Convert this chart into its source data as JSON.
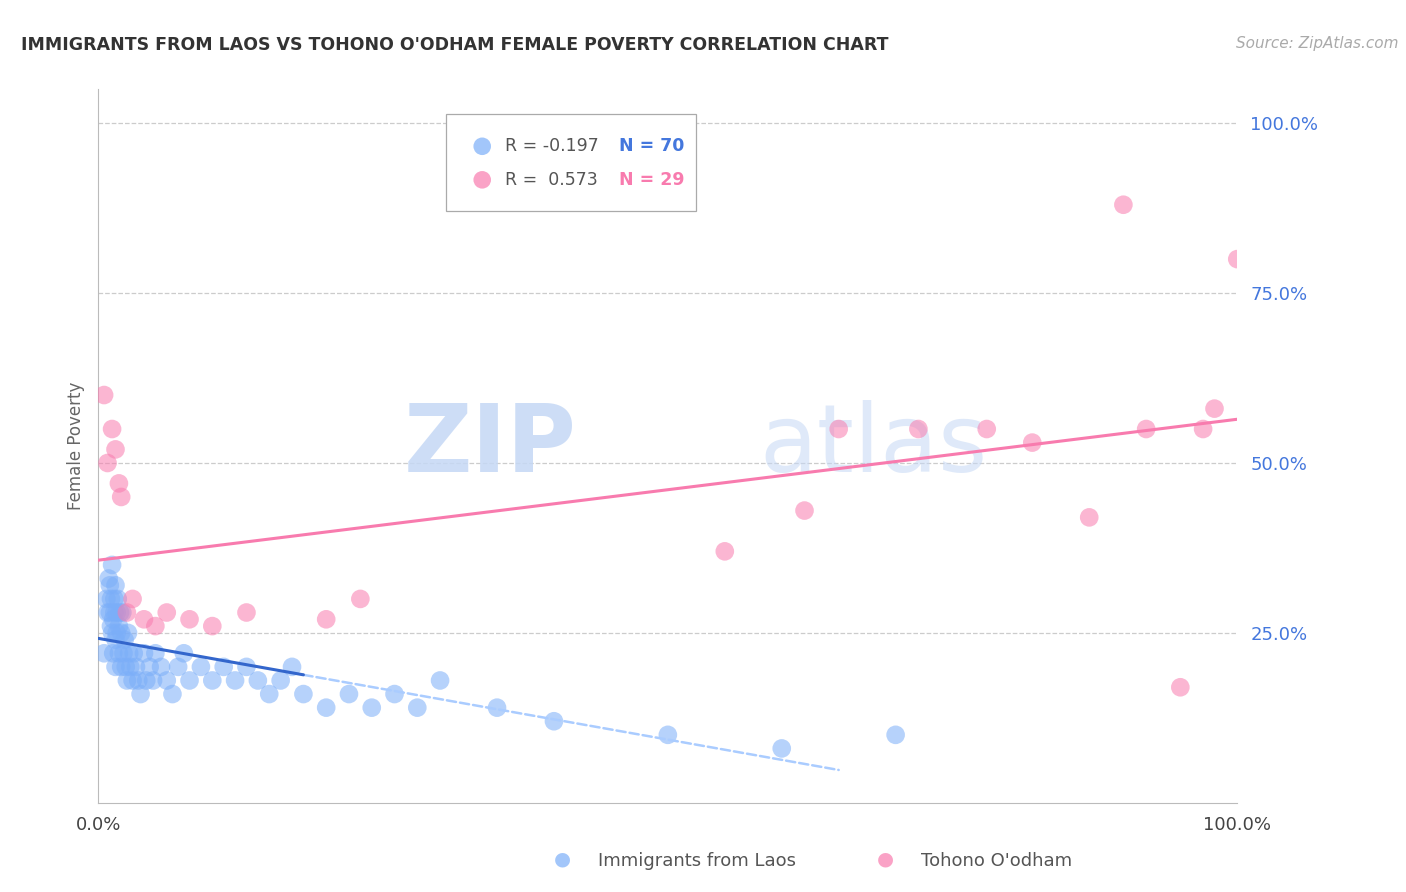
{
  "title": "IMMIGRANTS FROM LAOS VS TOHONO O'ODHAM FEMALE POVERTY CORRELATION CHART",
  "source": "Source: ZipAtlas.com",
  "ylabel": "Female Poverty",
  "ytick_labels": [
    "100.0%",
    "75.0%",
    "50.0%",
    "25.0%"
  ],
  "ytick_values": [
    1.0,
    0.75,
    0.5,
    0.25
  ],
  "xlim": [
    0.0,
    1.0
  ],
  "ylim": [
    0.0,
    1.05
  ],
  "legend_r_blue": "R = -0.197",
  "legend_n_blue": "N = 70",
  "legend_r_pink": "R =  0.573",
  "legend_n_pink": "N = 29",
  "color_blue": "#7BAEF8",
  "color_pink": "#F87BAE",
  "color_blue_line": "#3366CC",
  "color_pink_line": "#F87BAE",
  "color_blue_dashed": "#AACCFF",
  "watermark_zip": "ZIP",
  "watermark_atlas": "atlas",
  "blue_scatter_x": [
    0.005,
    0.007,
    0.008,
    0.009,
    0.01,
    0.01,
    0.011,
    0.011,
    0.012,
    0.012,
    0.013,
    0.013,
    0.014,
    0.014,
    0.015,
    0.015,
    0.015,
    0.016,
    0.016,
    0.017,
    0.018,
    0.018,
    0.019,
    0.02,
    0.02,
    0.021,
    0.022,
    0.023,
    0.024,
    0.025,
    0.026,
    0.027,
    0.028,
    0.03,
    0.031,
    0.033,
    0.035,
    0.037,
    0.04,
    0.042,
    0.045,
    0.048,
    0.05,
    0.055,
    0.06,
    0.065,
    0.07,
    0.075,
    0.08,
    0.09,
    0.1,
    0.11,
    0.12,
    0.13,
    0.14,
    0.15,
    0.16,
    0.17,
    0.18,
    0.2,
    0.22,
    0.24,
    0.26,
    0.28,
    0.3,
    0.35,
    0.4,
    0.5,
    0.6,
    0.7
  ],
  "blue_scatter_y": [
    0.22,
    0.3,
    0.28,
    0.33,
    0.28,
    0.32,
    0.26,
    0.3,
    0.25,
    0.35,
    0.27,
    0.22,
    0.3,
    0.28,
    0.24,
    0.2,
    0.32,
    0.28,
    0.25,
    0.3,
    0.22,
    0.26,
    0.28,
    0.25,
    0.2,
    0.28,
    0.22,
    0.24,
    0.2,
    0.18,
    0.25,
    0.22,
    0.2,
    0.18,
    0.22,
    0.2,
    0.18,
    0.16,
    0.22,
    0.18,
    0.2,
    0.18,
    0.22,
    0.2,
    0.18,
    0.16,
    0.2,
    0.22,
    0.18,
    0.2,
    0.18,
    0.2,
    0.18,
    0.2,
    0.18,
    0.16,
    0.18,
    0.2,
    0.16,
    0.14,
    0.16,
    0.14,
    0.16,
    0.14,
    0.18,
    0.14,
    0.12,
    0.1,
    0.08,
    0.1
  ],
  "pink_scatter_x": [
    0.005,
    0.008,
    0.012,
    0.015,
    0.018,
    0.02,
    0.025,
    0.03,
    0.04,
    0.05,
    0.06,
    0.08,
    0.1,
    0.13,
    0.2,
    0.23,
    0.55,
    0.62,
    0.65,
    0.72,
    0.78,
    0.82,
    0.87,
    0.9,
    0.92,
    0.95,
    0.97,
    0.98,
    1.0
  ],
  "pink_scatter_y": [
    0.6,
    0.5,
    0.55,
    0.52,
    0.47,
    0.45,
    0.28,
    0.3,
    0.27,
    0.26,
    0.28,
    0.27,
    0.26,
    0.28,
    0.27,
    0.3,
    0.37,
    0.43,
    0.55,
    0.55,
    0.55,
    0.53,
    0.42,
    0.88,
    0.55,
    0.17,
    0.55,
    0.58,
    0.8
  ]
}
